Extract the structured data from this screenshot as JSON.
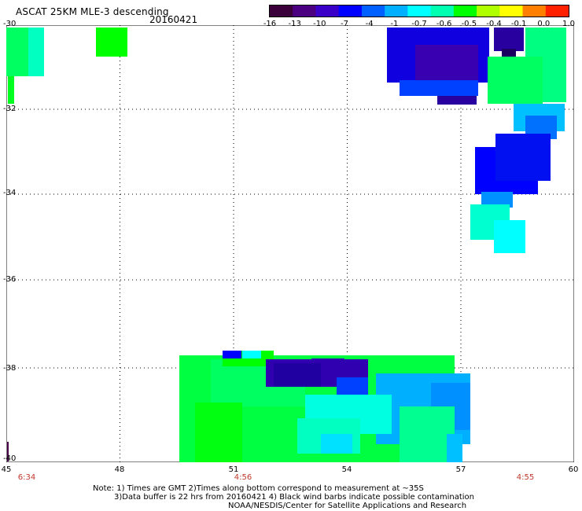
{
  "header": {
    "title": "ASCAT 25KM MLE-3 descending",
    "date": "20160421"
  },
  "colorbar": {
    "labels": [
      "-16",
      "-13",
      "-10",
      "-7",
      "-4",
      "-1",
      "-0.7",
      "-0.6",
      "-0.5",
      "-0.4",
      "-0.1",
      "0.0",
      "1.0"
    ],
    "colors": [
      "#3a003a",
      "#4b0082",
      "#3b00c8",
      "#0000ff",
      "#0060ff",
      "#00b0ff",
      "#00ffff",
      "#00ffb0",
      "#00ff00",
      "#b0ff00",
      "#ffff00",
      "#ff8000",
      "#ff2000"
    ]
  },
  "axes": {
    "x_ticks": [
      "45",
      "48",
      "51",
      "54",
      "57",
      "60"
    ],
    "y_ticks": [
      "-30",
      "-32",
      "-34",
      "-36",
      "-38",
      "-40"
    ]
  },
  "times": [
    "6:34",
    "4:56",
    "4:55"
  ],
  "notes": {
    "line1": "Note: 1) Times are GMT 2)Times along bottom correspond to measurement at ~35S",
    "line2": "3)Data buffer is 22 hrs from 20160421 4) Black wind barbs indicate possible contamination",
    "line3": "NOAA/NESDIS/Center for Satellite Applications and Research"
  }
}
